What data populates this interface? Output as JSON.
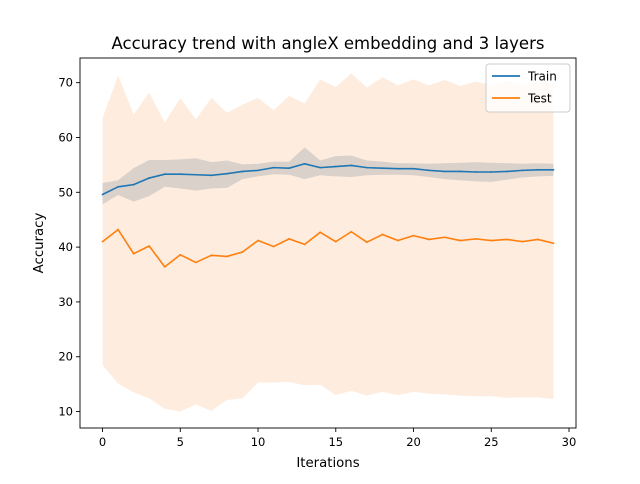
{
  "chart_data": {
    "type": "line",
    "title": "Accuracy trend with angleX embedding and 3 layers",
    "xlabel": "Iterations",
    "ylabel": "Accuracy",
    "xlim": [
      -1.45,
      30.45
    ],
    "ylim": [
      7.0,
      74.5
    ],
    "xticks": [
      0,
      5,
      10,
      15,
      20,
      25,
      30
    ],
    "yticks": [
      10,
      20,
      30,
      40,
      50,
      60,
      70
    ],
    "legend_position": "top-right",
    "grid": false,
    "x": [
      0,
      1,
      2,
      3,
      4,
      5,
      6,
      7,
      8,
      9,
      10,
      11,
      12,
      13,
      14,
      15,
      16,
      17,
      18,
      19,
      20,
      21,
      22,
      23,
      24,
      25,
      26,
      27,
      28,
      29
    ],
    "series": [
      {
        "name": "Train",
        "color": "#1f77b4",
        "band_color": "#bbbbbb",
        "values": [
          49.6,
          51.0,
          51.4,
          52.6,
          53.3,
          53.3,
          53.2,
          53.1,
          53.4,
          53.8,
          54.0,
          54.5,
          54.4,
          55.2,
          54.5,
          54.7,
          54.9,
          54.5,
          54.4,
          54.3,
          54.3,
          54.0,
          53.8,
          53.8,
          53.7,
          53.7,
          53.8,
          54.0,
          54.1,
          54.1
        ],
        "upper": [
          51.7,
          52.2,
          54.4,
          55.9,
          55.9,
          56.0,
          56.2,
          55.5,
          55.8,
          55.1,
          55.2,
          55.6,
          55.6,
          58.2,
          55.8,
          56.6,
          56.7,
          55.8,
          55.6,
          55.3,
          55.3,
          55.2,
          55.3,
          55.4,
          55.5,
          55.4,
          55.3,
          55.2,
          55.3,
          55.2
        ],
        "lower": [
          47.8,
          49.5,
          48.3,
          49.3,
          51.0,
          50.7,
          50.3,
          50.7,
          50.8,
          52.4,
          52.9,
          53.3,
          53.2,
          52.4,
          53.1,
          52.9,
          52.8,
          53.1,
          53.2,
          53.2,
          53.1,
          52.8,
          52.4,
          52.2,
          52.0,
          51.9,
          52.3,
          52.7,
          52.9,
          53.0
        ]
      },
      {
        "name": "Test",
        "color": "#ff7f0e",
        "band_color": "#fde0c8",
        "values": [
          41.0,
          43.2,
          38.8,
          40.2,
          36.4,
          38.6,
          37.2,
          38.5,
          38.3,
          39.1,
          41.2,
          40.1,
          41.5,
          40.5,
          42.7,
          41.0,
          42.8,
          40.9,
          42.3,
          41.2,
          42.1,
          41.4,
          41.8,
          41.2,
          41.5,
          41.2,
          41.4,
          41.0,
          41.4,
          40.7
        ],
        "upper": [
          63.5,
          71.3,
          64.2,
          68.2,
          62.7,
          67.2,
          63.3,
          67.2,
          64.5,
          66.0,
          67.2,
          65.0,
          67.6,
          66.2,
          70.6,
          69.2,
          71.7,
          69.1,
          71.0,
          69.5,
          70.6,
          69.5,
          70.5,
          69.4,
          70.2,
          69.6,
          70.4,
          69.5,
          70.3,
          69.7
        ],
        "lower": [
          18.5,
          15.1,
          13.5,
          12.4,
          10.5,
          10.0,
          11.3,
          10.1,
          12.1,
          12.4,
          15.3,
          15.3,
          15.4,
          14.8,
          14.9,
          13.0,
          13.8,
          12.9,
          13.6,
          13.0,
          13.6,
          13.3,
          13.1,
          12.9,
          12.8,
          12.8,
          12.5,
          12.6,
          12.6,
          12.3
        ]
      }
    ]
  }
}
